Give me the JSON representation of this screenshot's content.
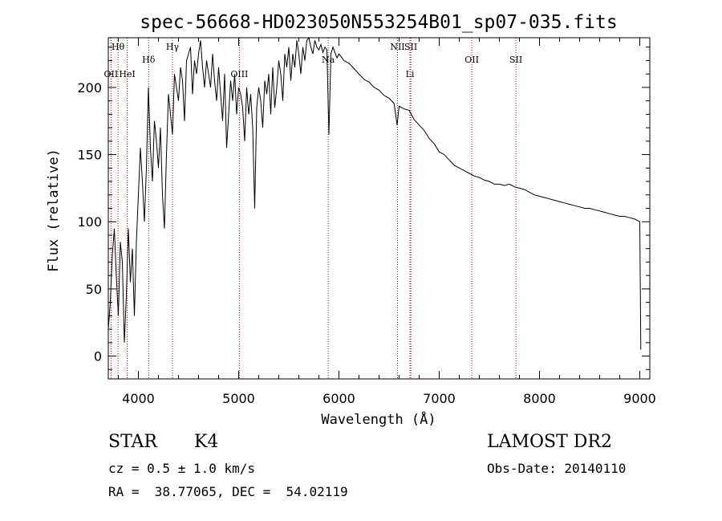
{
  "chart_data": {
    "type": "line",
    "title": "spec-56668-HD023050N553254B01_sp07-035.fits",
    "xlabel": "Wavelength (Å)",
    "ylabel": "Flux (relative)",
    "xlim": [
      3700,
      9100
    ],
    "ylim": [
      -17,
      237
    ],
    "xticks": [
      4000,
      5000,
      6000,
      7000,
      8000,
      9000
    ],
    "yticks": [
      0,
      50,
      100,
      150,
      200
    ],
    "grid": false,
    "series_color": "#000000",
    "line_color": "#8b1a1a",
    "spectral_lines": [
      {
        "label": "Hθ",
        "wavelength": 3797,
        "row": "top"
      },
      {
        "label": "OII",
        "wavelength": 3727,
        "row": "mid"
      },
      {
        "label": "HeI",
        "wavelength": 3889,
        "row": "mid"
      },
      {
        "label": "Hδ",
        "wavelength": 4102,
        "row": "upper"
      },
      {
        "label": "Hγ",
        "wavelength": 4340,
        "row": "top"
      },
      {
        "label": "OIII",
        "wavelength": 5007,
        "row": "mid"
      },
      {
        "label": "Na",
        "wavelength": 5893,
        "row": "upper"
      },
      {
        "label": "NII",
        "wavelength": 6584,
        "row": "top"
      },
      {
        "label": "SII",
        "wavelength": 6717,
        "row": "top"
      },
      {
        "label": "Li",
        "wavelength": 6708,
        "row": "mid"
      },
      {
        "label": "OII",
        "wavelength": 7325,
        "row": "upper"
      },
      {
        "label": "SII",
        "wavelength": 7765,
        "row": "upper"
      }
    ],
    "series": [
      {
        "x": [
          3700,
          3720,
          3740,
          3760,
          3780,
          3800,
          3820,
          3840,
          3860,
          3880,
          3900,
          3920,
          3940,
          3960,
          3980,
          4000,
          4020,
          4040,
          4060,
          4080,
          4100,
          4120,
          4140,
          4160,
          4180,
          4200,
          4220,
          4240,
          4260,
          4280,
          4300,
          4320,
          4340,
          4360,
          4380,
          4400,
          4420,
          4440,
          4460,
          4480,
          4500,
          4520,
          4540,
          4560,
          4580,
          4600,
          4620,
          4640,
          4660,
          4680,
          4700,
          4720,
          4740,
          4760,
          4780,
          4800,
          4820,
          4840,
          4860,
          4880,
          4900,
          4920,
          4940,
          4960,
          4980,
          5000,
          5020,
          5040,
          5060,
          5080,
          5100,
          5120,
          5140,
          5160,
          5180,
          5200,
          5220,
          5240,
          5260,
          5280,
          5300,
          5320,
          5340,
          5360,
          5380,
          5400,
          5420,
          5440,
          5460,
          5480,
          5500,
          5520,
          5540,
          5560,
          5580,
          5600,
          5620,
          5640,
          5660,
          5680,
          5700,
          5720,
          5740,
          5760,
          5780,
          5800,
          5820,
          5840,
          5860,
          5880,
          5900,
          5920,
          5940,
          5960,
          5980,
          6000,
          6050,
          6100,
          6150,
          6200,
          6250,
          6300,
          6350,
          6400,
          6450,
          6500,
          6550,
          6580,
          6600,
          6650,
          6700,
          6750,
          6800,
          6850,
          6900,
          6950,
          7000,
          7050,
          7100,
          7150,
          7200,
          7250,
          7300,
          7350,
          7400,
          7450,
          7500,
          7550,
          7600,
          7650,
          7700,
          7750,
          7800,
          7850,
          7900,
          7950,
          8000,
          8050,
          8100,
          8150,
          8200,
          8250,
          8300,
          8350,
          8400,
          8450,
          8500,
          8550,
          8600,
          8650,
          8700,
          8750,
          8800,
          8850,
          8900,
          8950,
          9000,
          9010
        ],
        "y": [
          20,
          40,
          75,
          95,
          60,
          30,
          85,
          70,
          10,
          45,
          95,
          55,
          80,
          30,
          85,
          120,
          155,
          130,
          100,
          140,
          200,
          155,
          130,
          175,
          160,
          140,
          170,
          120,
          95,
          150,
          195,
          180,
          165,
          210,
          200,
          190,
          215,
          205,
          175,
          220,
          225,
          230,
          195,
          220,
          210,
          225,
          235,
          215,
          200,
          220,
          210,
          200,
          225,
          205,
          190,
          215,
          195,
          175,
          210,
          155,
          180,
          205,
          190,
          210,
          180,
          200,
          195,
          185,
          160,
          200,
          180,
          195,
          170,
          110,
          185,
          200,
          190,
          170,
          205,
          195,
          210,
          180,
          215,
          185,
          200,
          220,
          210,
          190,
          225,
          215,
          230,
          205,
          225,
          215,
          235,
          225,
          210,
          230,
          220,
          235,
          240,
          230,
          225,
          235,
          230,
          228,
          232,
          226,
          230,
          228,
          165,
          225,
          230,
          226,
          222,
          225,
          220,
          218,
          214,
          210,
          206,
          204,
          200,
          198,
          194,
          192,
          188,
          172,
          186,
          184,
          183,
          176,
          172,
          168,
          162,
          158,
          152,
          150,
          146,
          142,
          140,
          138,
          136,
          134,
          133,
          131,
          130,
          128,
          128,
          127,
          128,
          126,
          125,
          124,
          122,
          120,
          119,
          118,
          117,
          116,
          115,
          114,
          113,
          112,
          111,
          110,
          110,
          109,
          108,
          107,
          106,
          105,
          104,
          104,
          103,
          102,
          100,
          5
        ]
      }
    ]
  },
  "info": {
    "class": "STAR",
    "subclass": "K4",
    "survey": "LAMOST DR2",
    "cz": "cz = 0.5 ± 1.0 km/s",
    "obs_date": "Obs-Date: 20140110",
    "coords": "RA =  38.77065, DEC =  54.02119"
  }
}
